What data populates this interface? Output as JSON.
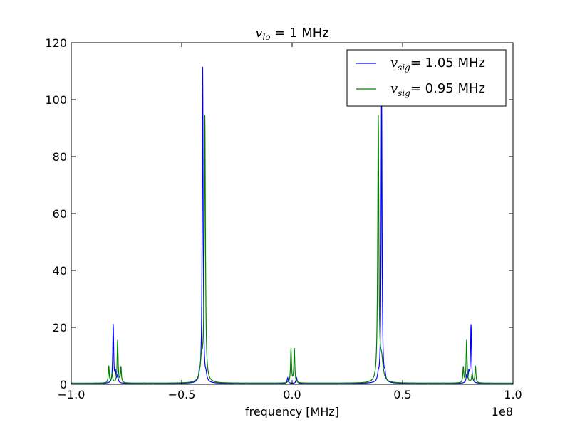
{
  "chart_data": {
    "type": "line",
    "title": {
      "symbol": "v",
      "subscript": "lo",
      "text": " = 1 MHz"
    },
    "xlabel": "frequency [MHz]",
    "ylabel": "",
    "x_offset_label": "1e8",
    "xlim": [
      -1.0,
      1.0
    ],
    "ylim": [
      0,
      120
    ],
    "xticks": [
      -1.0,
      -0.5,
      0.0,
      0.5,
      1.0
    ],
    "xtick_labels": [
      "−1.0",
      "−0.5",
      "0.0",
      "0.5",
      "1.0"
    ],
    "yticks": [
      0,
      20,
      40,
      60,
      80,
      100,
      120
    ],
    "ytick_labels": [
      "0",
      "20",
      "40",
      "60",
      "80",
      "100",
      "120"
    ],
    "grid": false,
    "legend_position": "top-right",
    "series": [
      {
        "name": "= 1.05 MHz",
        "legend_symbol": "v",
        "legend_subscript": "sig",
        "color": "#0000ff",
        "baseline": 0.3,
        "peaks": [
          {
            "x": -0.81,
            "y": 20.5,
            "w": 0.0025
          },
          {
            "x": -0.8,
            "y": 3.5,
            "w": 0.003
          },
          {
            "x": -0.79,
            "y": 2.5,
            "w": 0.003
          },
          {
            "x": -0.42,
            "y": 2.5,
            "w": 0.003
          },
          {
            "x": -0.405,
            "y": 111,
            "w": 0.0025
          },
          {
            "x": -0.39,
            "y": 2.0,
            "w": 0.004
          },
          {
            "x": -0.02,
            "y": 2.0,
            "w": 0.003
          },
          {
            "x": 0.02,
            "y": 2.0,
            "w": 0.003
          },
          {
            "x": 0.39,
            "y": 2.0,
            "w": 0.004
          },
          {
            "x": 0.405,
            "y": 104,
            "w": 0.0025
          },
          {
            "x": 0.42,
            "y": 2.5,
            "w": 0.003
          },
          {
            "x": 0.79,
            "y": 2.5,
            "w": 0.003
          },
          {
            "x": 0.8,
            "y": 3.5,
            "w": 0.003
          },
          {
            "x": 0.81,
            "y": 20.5,
            "w": 0.0025
          }
        ]
      },
      {
        "name": "= 0.95 MHz",
        "legend_symbol": "v",
        "legend_subscript": "sig",
        "color": "#008000",
        "baseline": 0.4,
        "peaks": [
          {
            "x": -0.83,
            "y": 6.0,
            "w": 0.0025
          },
          {
            "x": -0.815,
            "y": 3.0,
            "w": 0.003
          },
          {
            "x": -0.79,
            "y": 15.0,
            "w": 0.0025
          },
          {
            "x": -0.775,
            "y": 5.5,
            "w": 0.0025
          },
          {
            "x": -0.395,
            "y": 92.5,
            "w": 0.003
          },
          {
            "x": -0.41,
            "y": 7.5,
            "w": 0.008
          },
          {
            "x": -0.005,
            "y": 12.0,
            "w": 0.0025
          },
          {
            "x": 0.01,
            "y": 12.0,
            "w": 0.0025
          },
          {
            "x": 0.39,
            "y": 92.5,
            "w": 0.003
          },
          {
            "x": 0.405,
            "y": 7.5,
            "w": 0.008
          },
          {
            "x": 0.775,
            "y": 5.5,
            "w": 0.0025
          },
          {
            "x": 0.79,
            "y": 15.0,
            "w": 0.0025
          },
          {
            "x": 0.815,
            "y": 3.0,
            "w": 0.003
          },
          {
            "x": 0.83,
            "y": 6.0,
            "w": 0.0025
          }
        ]
      }
    ]
  }
}
